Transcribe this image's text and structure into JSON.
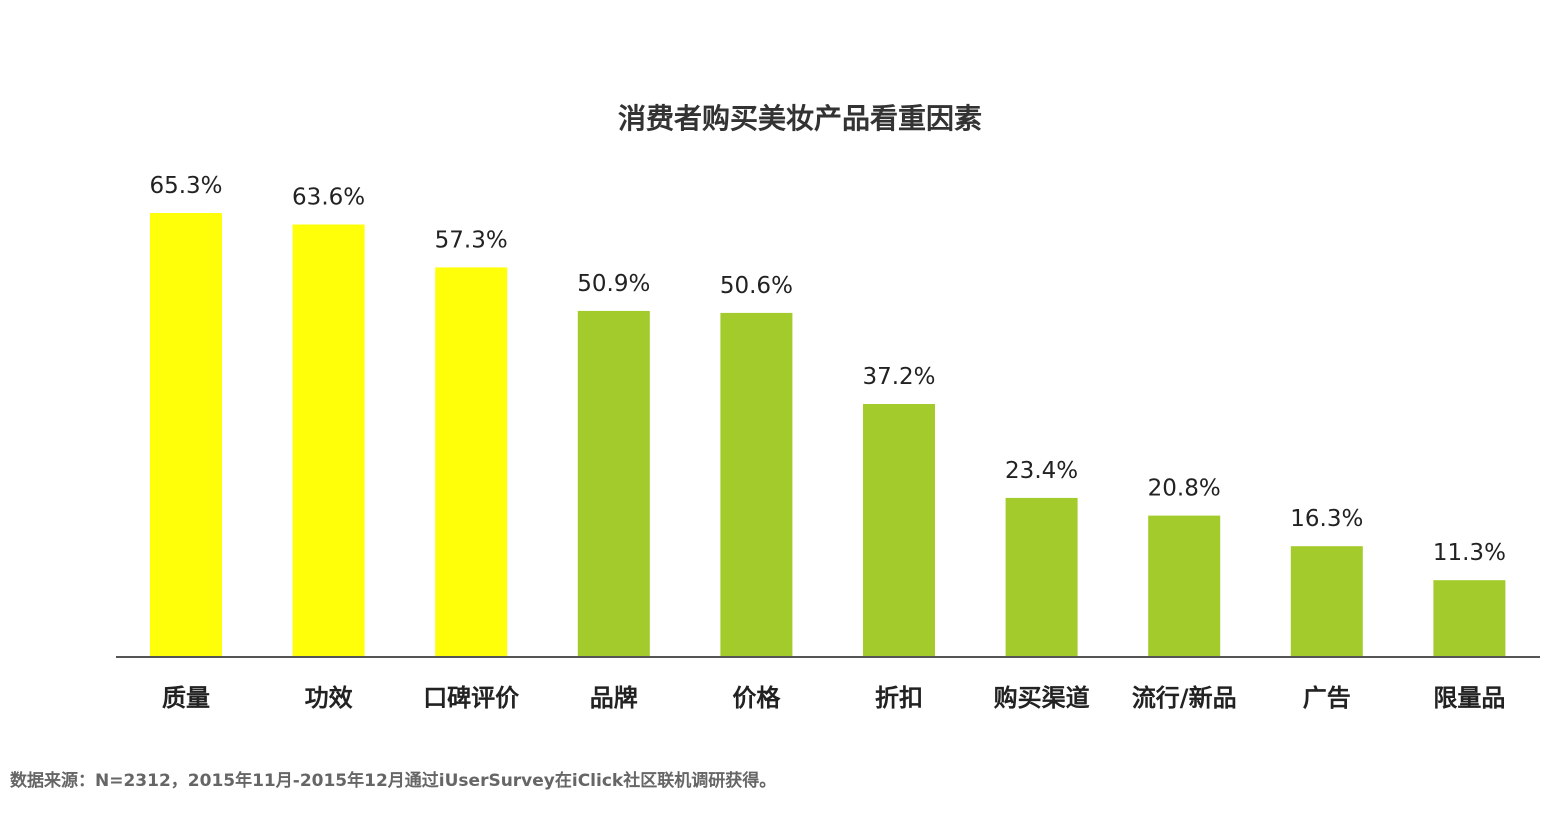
{
  "chart_data": {
    "type": "bar",
    "title": "消费者购买美妆产品看重因素",
    "xlabel": "",
    "ylabel": "",
    "ylim": [
      0,
      70
    ],
    "grid": false,
    "categories": [
      "质量",
      "功效",
      "口碑评价",
      "品牌",
      "价格",
      "折扣",
      "购买渠道",
      "流行/新品",
      "广告",
      "限量品"
    ],
    "values": [
      65.3,
      63.6,
      57.3,
      50.9,
      50.6,
      37.2,
      23.4,
      20.8,
      16.3,
      11.3
    ],
    "value_labels": [
      "65.3%",
      "63.6%",
      "57.3%",
      "50.9%",
      "50.6%",
      "37.2%",
      "23.4%",
      "20.8%",
      "16.3%",
      "11.3%"
    ],
    "highlight_count": 3,
    "colors": {
      "highlight": "#FFFF0A",
      "normal": "#A3CB2C",
      "axis": "#555555"
    }
  },
  "footer": {
    "source": "数据来源：N=2312，2015年11月-2015年12月通过iUserSurvey在iClick社区联机调研获得。"
  }
}
